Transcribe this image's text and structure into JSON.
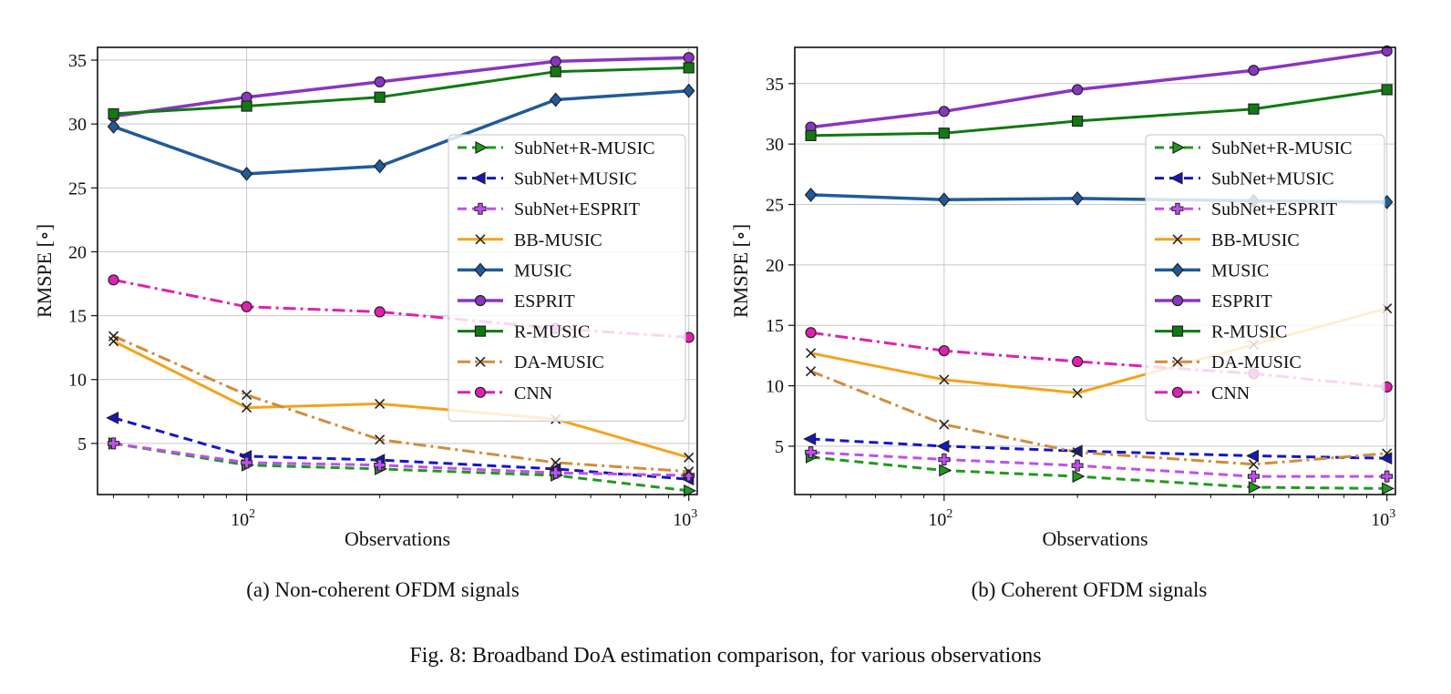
{
  "figure": {
    "caption": "Fig. 8: Broadband DoA estimation comparison, for various observations"
  },
  "series_styles": [
    {
      "name": "SubNet+R-MUSIC",
      "color": "#1f9a1f",
      "dash": "10,6",
      "marker": "triangle-right",
      "width": 3
    },
    {
      "name": "SubNet+MUSIC",
      "color": "#1515c8",
      "dash": "10,6",
      "marker": "triangle-left",
      "width": 3
    },
    {
      "name": "SubNet+ESPRIT",
      "color": "#c04ff0",
      "dash": "10,6",
      "marker": "plus",
      "width": 3
    },
    {
      "name": "BB-MUSIC",
      "color": "#f5a31a",
      "dash": "",
      "marker": "x",
      "width": 3
    },
    {
      "name": "MUSIC",
      "color": "#1f5b9a",
      "dash": "",
      "marker": "diamond",
      "width": 3.5
    },
    {
      "name": "ESPRIT",
      "color": "#8a35c2",
      "dash": "",
      "marker": "circle",
      "width": 3.5
    },
    {
      "name": "R-MUSIC",
      "color": "#107a10",
      "dash": "",
      "marker": "square",
      "width": 3
    },
    {
      "name": "DA-MUSIC",
      "color": "#d28c3c",
      "dash": "14,5,3,5",
      "marker": "x",
      "width": 3
    },
    {
      "name": "CNN",
      "color": "#e020b0",
      "dash": "14,5,3,5",
      "marker": "circle",
      "width": 3
    }
  ],
  "chart_data": [
    {
      "id": "a",
      "type": "line",
      "caption": "(a) Non-coherent OFDM signals",
      "xlabel": "Observations",
      "ylabel": "RMSPE [∘]",
      "xscale": "log",
      "xlim": [
        46,
        1045
      ],
      "ylim": [
        1.0,
        36.0
      ],
      "yticks": [
        5,
        10,
        15,
        20,
        25,
        30,
        35
      ],
      "xticks": [
        {
          "value": 100,
          "label_base": "10",
          "label_exp": "2"
        },
        {
          "value": 1000,
          "label_base": "10",
          "label_exp": "3"
        }
      ],
      "grid": true,
      "legend_placement": "center-right",
      "x": [
        50,
        100,
        200,
        500,
        1000
      ],
      "series": [
        {
          "name": "SubNet+R-MUSIC",
          "values": [
            5.0,
            3.3,
            3.0,
            2.5,
            1.3
          ]
        },
        {
          "name": "SubNet+MUSIC",
          "values": [
            7.0,
            4.0,
            3.7,
            3.0,
            2.2
          ]
        },
        {
          "name": "SubNet+ESPRIT",
          "values": [
            5.0,
            3.5,
            3.3,
            2.7,
            2.5
          ]
        },
        {
          "name": "BB-MUSIC",
          "values": [
            13.0,
            7.8,
            8.1,
            6.9,
            3.9
          ]
        },
        {
          "name": "MUSIC",
          "values": [
            29.8,
            26.1,
            26.7,
            31.9,
            32.6
          ]
        },
        {
          "name": "ESPRIT",
          "values": [
            30.6,
            32.1,
            33.3,
            34.9,
            35.2
          ]
        },
        {
          "name": "R-MUSIC",
          "values": [
            30.8,
            31.4,
            32.1,
            34.1,
            34.4
          ]
        },
        {
          "name": "DA-MUSIC",
          "values": [
            13.4,
            8.8,
            5.3,
            3.5,
            2.8
          ]
        },
        {
          "name": "CNN",
          "values": [
            17.8,
            15.7,
            15.3,
            14.0,
            13.3
          ]
        }
      ]
    },
    {
      "id": "b",
      "type": "line",
      "caption": "(b) Coherent OFDM signals",
      "xlabel": "Observations",
      "ylabel": "RMSPE [∘]",
      "xscale": "log",
      "xlim": [
        46,
        1045
      ],
      "ylim": [
        1.0,
        38.0
      ],
      "yticks": [
        5,
        10,
        15,
        20,
        25,
        30,
        35
      ],
      "xticks": [
        {
          "value": 100,
          "label_base": "10",
          "label_exp": "2"
        },
        {
          "value": 1000,
          "label_base": "10",
          "label_exp": "3"
        }
      ],
      "grid": true,
      "legend_placement": "center-right",
      "x": [
        50,
        100,
        200,
        500,
        1000
      ],
      "series": [
        {
          "name": "SubNet+R-MUSIC",
          "values": [
            4.1,
            3.0,
            2.5,
            1.6,
            1.5
          ]
        },
        {
          "name": "SubNet+MUSIC",
          "values": [
            5.6,
            5.0,
            4.6,
            4.2,
            4.0
          ]
        },
        {
          "name": "SubNet+ESPRIT",
          "values": [
            4.5,
            3.9,
            3.4,
            2.5,
            2.5
          ]
        },
        {
          "name": "BB-MUSIC",
          "values": [
            12.7,
            10.5,
            9.4,
            13.4,
            16.4
          ]
        },
        {
          "name": "MUSIC",
          "values": [
            25.8,
            25.4,
            25.5,
            25.3,
            25.2
          ]
        },
        {
          "name": "ESPRIT",
          "values": [
            31.4,
            32.7,
            34.5,
            36.1,
            37.7
          ]
        },
        {
          "name": "R-MUSIC",
          "values": [
            30.7,
            30.9,
            31.9,
            32.9,
            34.5
          ]
        },
        {
          "name": "DA-MUSIC",
          "values": [
            11.2,
            6.8,
            4.5,
            3.5,
            4.4
          ]
        },
        {
          "name": "CNN",
          "values": [
            14.4,
            12.9,
            12.0,
            11.0,
            9.9
          ]
        }
      ]
    }
  ]
}
